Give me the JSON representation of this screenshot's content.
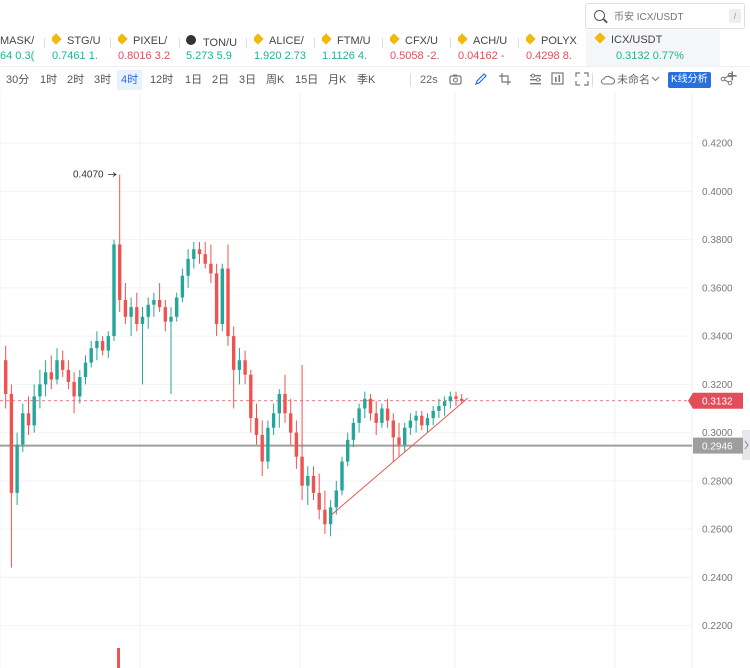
{
  "search": {
    "placeholder": "币安 ICX/USDT",
    "shortcut": "/"
  },
  "tickers": [
    {
      "name": "MASK/",
      "price": "64 0.3(",
      "dir": "up",
      "icon": "none"
    },
    {
      "name": "STG/U",
      "price": "0.7461 1.",
      "dir": "up",
      "icon": "binance-icon"
    },
    {
      "name": "PIXEL/",
      "price": "0.8016 3.2",
      "dir": "dn",
      "icon": "binance-icon"
    },
    {
      "name": "TON/U",
      "price": "5.273 5.9",
      "dir": "up",
      "icon": "ton-icon"
    },
    {
      "name": "ALICE/",
      "price": "1.920 2.73",
      "dir": "up",
      "icon": "binance-icon"
    },
    {
      "name": "FTM/U",
      "price": "1.1126 4.",
      "dir": "up",
      "icon": "binance-icon"
    },
    {
      "name": "CFX/U",
      "price": "0.5058 -2.",
      "dir": "dn",
      "icon": "binance-icon"
    },
    {
      "name": "ACH/U",
      "price": "0.04162 -",
      "dir": "dn",
      "icon": "binance-icon"
    },
    {
      "name": "POLYX",
      "price": "0.4298 8.",
      "dir": "dn",
      "icon": "binance-icon"
    },
    {
      "name": "ICX/USDT",
      "price": "0.3132 0.77%",
      "dir": "up",
      "icon": "binance-icon",
      "active": true
    }
  ],
  "timeframes": [
    "30分",
    "1时",
    "2时",
    "3时",
    "4时",
    "12时",
    "1日",
    "2日",
    "3日",
    "周K",
    "15日",
    "月K",
    "季K"
  ],
  "selected_timeframe": "4时",
  "toolbar": {
    "countdown": "22s",
    "layout_name": "未命名",
    "analysis_button": "K线分析"
  },
  "chart_data": {
    "type": "candlestick",
    "symbol": "ICX/USDT",
    "y_ticks": [
      "0.4200",
      "0.4000",
      "0.3800",
      "0.3600",
      "0.3400",
      "0.3200",
      "0.3000",
      "0.2800",
      "0.2600",
      "0.2400",
      "0.2200"
    ],
    "ylim": [
      0.2024,
      0.4412
    ],
    "high_label": "0.4070",
    "current_price": "0.3132",
    "current_price_value": 0.3132,
    "horizontal_line_label": "0.2946",
    "horizontal_line_value": 0.2946,
    "trendline": [
      {
        "i": 57,
        "p": 0.2657
      },
      {
        "i": 81,
        "p": 0.3143
      }
    ],
    "colors": {
      "up": "#26a69a",
      "down": "#ef5350",
      "price_tag": "#e34d59",
      "hline": "#9e9e9e"
    },
    "candles": [
      {
        "o": 0.33,
        "h": 0.336,
        "l": 0.31,
        "c": 0.316
      },
      {
        "o": 0.316,
        "h": 0.32,
        "l": 0.244,
        "c": 0.275
      },
      {
        "o": 0.275,
        "h": 0.3,
        "l": 0.27,
        "c": 0.295
      },
      {
        "o": 0.295,
        "h": 0.312,
        "l": 0.292,
        "c": 0.308
      },
      {
        "o": 0.308,
        "h": 0.315,
        "l": 0.299,
        "c": 0.303
      },
      {
        "o": 0.303,
        "h": 0.32,
        "l": 0.3,
        "c": 0.315
      },
      {
        "o": 0.315,
        "h": 0.326,
        "l": 0.31,
        "c": 0.32
      },
      {
        "o": 0.32,
        "h": 0.33,
        "l": 0.315,
        "c": 0.325
      },
      {
        "o": 0.325,
        "h": 0.332,
        "l": 0.318,
        "c": 0.322
      },
      {
        "o": 0.322,
        "h": 0.335,
        "l": 0.32,
        "c": 0.33
      },
      {
        "o": 0.33,
        "h": 0.334,
        "l": 0.323,
        "c": 0.326
      },
      {
        "o": 0.326,
        "h": 0.33,
        "l": 0.318,
        "c": 0.321
      },
      {
        "o": 0.321,
        "h": 0.325,
        "l": 0.308,
        "c": 0.315
      },
      {
        "o": 0.315,
        "h": 0.326,
        "l": 0.312,
        "c": 0.323
      },
      {
        "o": 0.323,
        "h": 0.332,
        "l": 0.32,
        "c": 0.329
      },
      {
        "o": 0.329,
        "h": 0.338,
        "l": 0.327,
        "c": 0.335
      },
      {
        "o": 0.335,
        "h": 0.342,
        "l": 0.33,
        "c": 0.338
      },
      {
        "o": 0.338,
        "h": 0.34,
        "l": 0.332,
        "c": 0.334
      },
      {
        "o": 0.334,
        "h": 0.342,
        "l": 0.331,
        "c": 0.34
      },
      {
        "o": 0.34,
        "h": 0.38,
        "l": 0.338,
        "c": 0.378
      },
      {
        "o": 0.378,
        "h": 0.407,
        "l": 0.35,
        "c": 0.355
      },
      {
        "o": 0.355,
        "h": 0.362,
        "l": 0.345,
        "c": 0.348
      },
      {
        "o": 0.348,
        "h": 0.356,
        "l": 0.34,
        "c": 0.352
      },
      {
        "o": 0.352,
        "h": 0.358,
        "l": 0.342,
        "c": 0.345
      },
      {
        "o": 0.345,
        "h": 0.352,
        "l": 0.32,
        "c": 0.348
      },
      {
        "o": 0.348,
        "h": 0.356,
        "l": 0.343,
        "c": 0.353
      },
      {
        "o": 0.353,
        "h": 0.358,
        "l": 0.348,
        "c": 0.355
      },
      {
        "o": 0.355,
        "h": 0.362,
        "l": 0.35,
        "c": 0.352
      },
      {
        "o": 0.352,
        "h": 0.355,
        "l": 0.342,
        "c": 0.346
      },
      {
        "o": 0.346,
        "h": 0.352,
        "l": 0.316,
        "c": 0.348
      },
      {
        "o": 0.348,
        "h": 0.358,
        "l": 0.346,
        "c": 0.356
      },
      {
        "o": 0.356,
        "h": 0.368,
        "l": 0.354,
        "c": 0.365
      },
      {
        "o": 0.365,
        "h": 0.376,
        "l": 0.36,
        "c": 0.372
      },
      {
        "o": 0.372,
        "h": 0.379,
        "l": 0.368,
        "c": 0.376
      },
      {
        "o": 0.376,
        "h": 0.379,
        "l": 0.37,
        "c": 0.374
      },
      {
        "o": 0.374,
        "h": 0.379,
        "l": 0.368,
        "c": 0.37
      },
      {
        "o": 0.37,
        "h": 0.378,
        "l": 0.362,
        "c": 0.366
      },
      {
        "o": 0.366,
        "h": 0.37,
        "l": 0.34,
        "c": 0.345
      },
      {
        "o": 0.345,
        "h": 0.37,
        "l": 0.342,
        "c": 0.368
      },
      {
        "o": 0.368,
        "h": 0.378,
        "l": 0.336,
        "c": 0.34
      },
      {
        "o": 0.34,
        "h": 0.344,
        "l": 0.31,
        "c": 0.326
      },
      {
        "o": 0.326,
        "h": 0.335,
        "l": 0.32,
        "c": 0.33
      },
      {
        "o": 0.33,
        "h": 0.334,
        "l": 0.32,
        "c": 0.324
      },
      {
        "o": 0.324,
        "h": 0.326,
        "l": 0.3,
        "c": 0.306
      },
      {
        "o": 0.306,
        "h": 0.312,
        "l": 0.295,
        "c": 0.299
      },
      {
        "o": 0.299,
        "h": 0.305,
        "l": 0.282,
        "c": 0.288
      },
      {
        "o": 0.288,
        "h": 0.305,
        "l": 0.285,
        "c": 0.302
      },
      {
        "o": 0.302,
        "h": 0.312,
        "l": 0.299,
        "c": 0.308
      },
      {
        "o": 0.308,
        "h": 0.318,
        "l": 0.302,
        "c": 0.316
      },
      {
        "o": 0.316,
        "h": 0.324,
        "l": 0.304,
        "c": 0.308
      },
      {
        "o": 0.308,
        "h": 0.314,
        "l": 0.295,
        "c": 0.3
      },
      {
        "o": 0.3,
        "h": 0.305,
        "l": 0.285,
        "c": 0.29
      },
      {
        "o": 0.29,
        "h": 0.328,
        "l": 0.272,
        "c": 0.278
      },
      {
        "o": 0.278,
        "h": 0.286,
        "l": 0.27,
        "c": 0.282
      },
      {
        "o": 0.282,
        "h": 0.286,
        "l": 0.272,
        "c": 0.275
      },
      {
        "o": 0.275,
        "h": 0.283,
        "l": 0.264,
        "c": 0.268
      },
      {
        "o": 0.268,
        "h": 0.276,
        "l": 0.258,
        "c": 0.262
      },
      {
        "o": 0.262,
        "h": 0.272,
        "l": 0.257,
        "c": 0.269
      },
      {
        "o": 0.269,
        "h": 0.28,
        "l": 0.266,
        "c": 0.276
      },
      {
        "o": 0.276,
        "h": 0.29,
        "l": 0.274,
        "c": 0.288
      },
      {
        "o": 0.288,
        "h": 0.3,
        "l": 0.286,
        "c": 0.297
      },
      {
        "o": 0.297,
        "h": 0.306,
        "l": 0.294,
        "c": 0.304
      },
      {
        "o": 0.304,
        "h": 0.312,
        "l": 0.3,
        "c": 0.31
      },
      {
        "o": 0.31,
        "h": 0.317,
        "l": 0.306,
        "c": 0.314
      },
      {
        "o": 0.314,
        "h": 0.316,
        "l": 0.305,
        "c": 0.308
      },
      {
        "o": 0.308,
        "h": 0.313,
        "l": 0.299,
        "c": 0.304
      },
      {
        "o": 0.304,
        "h": 0.312,
        "l": 0.302,
        "c": 0.31
      },
      {
        "o": 0.31,
        "h": 0.314,
        "l": 0.302,
        "c": 0.305
      },
      {
        "o": 0.305,
        "h": 0.308,
        "l": 0.288,
        "c": 0.298
      },
      {
        "o": 0.298,
        "h": 0.304,
        "l": 0.29,
        "c": 0.295
      },
      {
        "o": 0.295,
        "h": 0.304,
        "l": 0.292,
        "c": 0.302
      },
      {
        "o": 0.302,
        "h": 0.308,
        "l": 0.299,
        "c": 0.305
      },
      {
        "o": 0.305,
        "h": 0.309,
        "l": 0.3,
        "c": 0.307
      },
      {
        "o": 0.307,
        "h": 0.309,
        "l": 0.301,
        "c": 0.303
      },
      {
        "o": 0.303,
        "h": 0.308,
        "l": 0.3,
        "c": 0.306
      },
      {
        "o": 0.306,
        "h": 0.311,
        "l": 0.303,
        "c": 0.309
      },
      {
        "o": 0.309,
        "h": 0.314,
        "l": 0.306,
        "c": 0.311
      },
      {
        "o": 0.311,
        "h": 0.315,
        "l": 0.307,
        "c": 0.313
      },
      {
        "o": 0.313,
        "h": 0.317,
        "l": 0.31,
        "c": 0.315
      },
      {
        "o": 0.315,
        "h": 0.317,
        "l": 0.311,
        "c": 0.314
      },
      {
        "o": 0.314,
        "h": 0.316,
        "l": 0.312,
        "c": 0.3132
      }
    ],
    "volume_bar": {
      "i": 20,
      "color": "#ef5350"
    }
  }
}
